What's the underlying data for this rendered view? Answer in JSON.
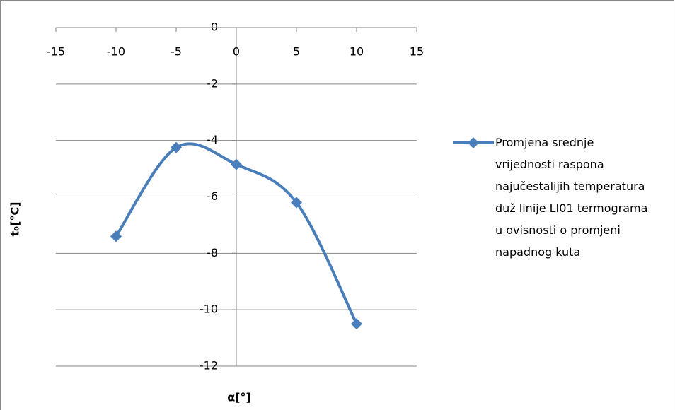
{
  "chart_data": {
    "type": "scatter_smooth",
    "x_label": "α[°]",
    "y_label": "t₀[°C]",
    "xlim": [
      -15,
      15
    ],
    "xticks": [
      -15,
      -10,
      -5,
      0,
      5,
      10,
      15
    ],
    "ylim": [
      -12,
      0
    ],
    "yticks": [
      -12,
      -10,
      -8,
      -6,
      -4,
      -2,
      0
    ],
    "grid": true,
    "legend": "right",
    "series": [
      {
        "name": "Promjena srednje vrijednosti raspona najučestalijih temperatura duž linije LI01 termograma u ovisnosti o promjeni napadnog kuta",
        "color": "#4a7ebb",
        "x": [
          -10,
          -5,
          0,
          5,
          10
        ],
        "values": [
          -7.4,
          -4.25,
          -4.85,
          -6.2,
          -10.5
        ]
      }
    ]
  }
}
